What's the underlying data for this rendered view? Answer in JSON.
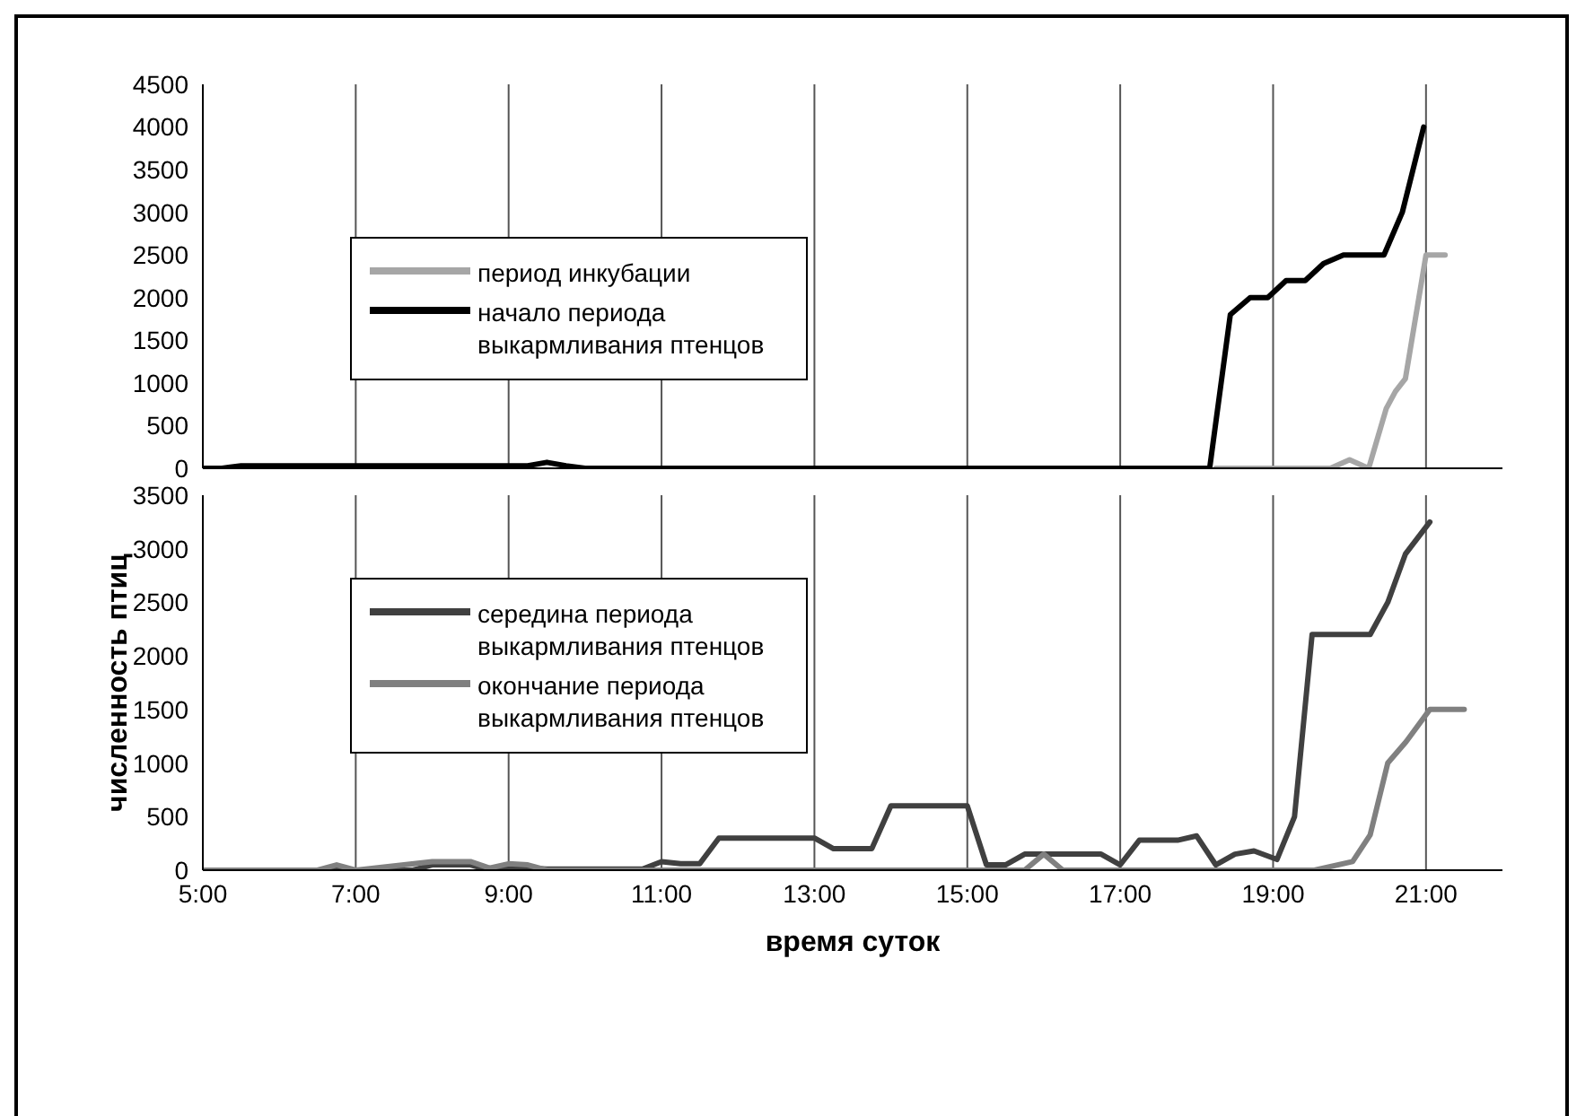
{
  "chart_data": [
    {
      "type": "line",
      "xlim": [
        5,
        22
      ],
      "xticks": [
        {
          "value": 5,
          "label": null
        },
        {
          "value": 7,
          "label": null
        },
        {
          "value": 9,
          "label": null
        },
        {
          "value": 11,
          "label": null
        },
        {
          "value": 13,
          "label": null
        },
        {
          "value": 15,
          "label": null
        },
        {
          "value": 17,
          "label": null
        },
        {
          "value": 19,
          "label": null
        },
        {
          "value": 21,
          "label": null
        }
      ],
      "ylim": [
        0,
        4500
      ],
      "yticks": [
        0,
        500,
        1000,
        1500,
        2000,
        2500,
        3000,
        3500,
        4000,
        4500
      ],
      "tick_labels": "y",
      "grid": "x",
      "legend": "left",
      "marker": "none",
      "line_style": "solid",
      "series": [
        {
          "name": "период инкубации",
          "color": "#a6a6a6",
          "x": [
            18.25,
            19.75,
            20.0,
            20.25,
            20.48,
            20.6,
            20.73,
            21.0,
            21.25
          ],
          "values": [
            0,
            0,
            100,
            0,
            700,
            900,
            1050,
            2500,
            2500
          ]
        },
        {
          "name": "начало периода выкармливания птенцов",
          "color": "#000000",
          "x": [
            5,
            5.25,
            5.5,
            9.25,
            9.5,
            9.75,
            10,
            18.17,
            18.44,
            18.7,
            18.93,
            19.17,
            19.42,
            19.66,
            19.92,
            20.45,
            20.69,
            20.97
          ],
          "values": [
            0,
            0,
            30,
            30,
            70,
            30,
            0,
            0,
            1800,
            2000,
            2000,
            2200,
            2200,
            2400,
            2500,
            2500,
            3000,
            4000
          ]
        }
      ]
    },
    {
      "type": "line",
      "xlabel": "время суток",
      "ylabel": "численность птиц",
      "xlim": [
        5,
        22
      ],
      "xticks": [
        {
          "value": 5,
          "label": "5:00"
        },
        {
          "value": 7,
          "label": "7:00"
        },
        {
          "value": 9,
          "label": "9:00"
        },
        {
          "value": 11,
          "label": "11:00"
        },
        {
          "value": 13,
          "label": "13:00"
        },
        {
          "value": 15,
          "label": "15:00"
        },
        {
          "value": 17,
          "label": "17:00"
        },
        {
          "value": 19,
          "label": "19:00"
        },
        {
          "value": 21,
          "label": "21:00"
        }
      ],
      "ylim": [
        0,
        3500
      ],
      "yticks": [
        0,
        500,
        1000,
        1500,
        2000,
        2500,
        3000,
        3500
      ],
      "grid": "x",
      "legend": "top left",
      "marker": "none",
      "line_style": "solid",
      "series": [
        {
          "name": "середина периода выкармливания птенцов",
          "color": "#404040",
          "x": [
            5,
            7.75,
            8,
            8.5,
            8.75,
            9,
            9.5,
            10.75,
            11,
            11.25,
            11.5,
            11.75,
            13,
            13.25,
            13.75,
            14,
            15,
            15.25,
            15.5,
            15.75,
            16.75,
            17,
            17.25,
            17.75,
            18,
            18.25,
            18.5,
            18.75,
            19.05,
            19.28,
            19.51,
            20.27,
            20.5,
            20.73,
            21.05
          ],
          "values": [
            0,
            0,
            50,
            50,
            0,
            30,
            10,
            10,
            80,
            60,
            60,
            300,
            300,
            200,
            200,
            600,
            600,
            50,
            50,
            150,
            150,
            50,
            280,
            280,
            320,
            50,
            150,
            180,
            100,
            500,
            2200,
            2200,
            2500,
            2950,
            3250
          ]
        },
        {
          "name": "окончание периода выкармливания птенцов",
          "color": "#808080",
          "x": [
            5,
            6.5,
            6.75,
            7,
            8,
            8.5,
            8.75,
            9,
            9.25,
            9.5,
            15.75,
            16,
            16.25,
            19.54,
            20.04,
            20.27,
            20.5,
            20.74,
            21.05,
            21.5
          ],
          "values": [
            0,
            0,
            50,
            0,
            80,
            80,
            20,
            60,
            50,
            0,
            0,
            150,
            0,
            0,
            80,
            330,
            1000,
            1200,
            1500,
            1500
          ]
        }
      ]
    }
  ]
}
